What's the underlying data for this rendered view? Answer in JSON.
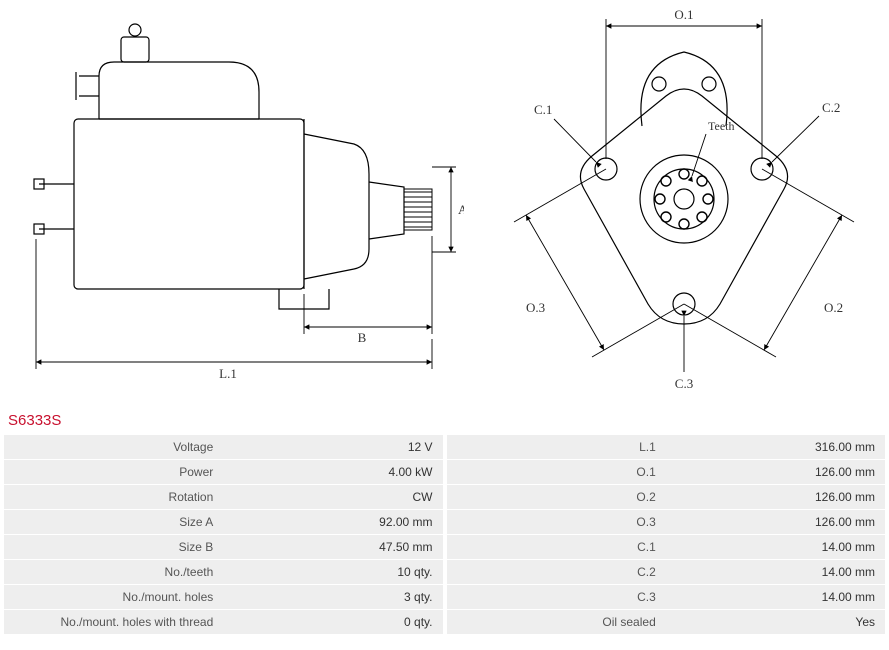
{
  "part_id": "S6333S",
  "diagram_labels": {
    "L1": "L.1",
    "A": "A",
    "B": "B",
    "O1": "O.1",
    "O2": "O.2",
    "O3": "O.3",
    "C1": "C.1",
    "C2": "C.2",
    "C3": "C.3",
    "Teeth": "Teeth"
  },
  "left_specs": [
    {
      "label": "Voltage",
      "value": "12 V"
    },
    {
      "label": "Power",
      "value": "4.00 kW"
    },
    {
      "label": "Rotation",
      "value": "CW"
    },
    {
      "label": "Size A",
      "value": "92.00 mm"
    },
    {
      "label": "Size B",
      "value": "47.50 mm"
    },
    {
      "label": "No./teeth",
      "value": "10 qty."
    },
    {
      "label": "No./mount. holes",
      "value": "3 qty."
    },
    {
      "label": "No./mount. holes with thread",
      "value": "0 qty."
    }
  ],
  "right_specs": [
    {
      "label": "L.1",
      "value": "316.00 mm"
    },
    {
      "label": "O.1",
      "value": "126.00 mm"
    },
    {
      "label": "O.2",
      "value": "126.00 mm"
    },
    {
      "label": "O.3",
      "value": "126.00 mm"
    },
    {
      "label": "C.1",
      "value": "14.00 mm"
    },
    {
      "label": "C.2",
      "value": "14.00 mm"
    },
    {
      "label": "C.3",
      "value": "14.00 mm"
    },
    {
      "label": "Oil sealed",
      "value": "Yes"
    }
  ],
  "style": {
    "stroke": "#000000",
    "stroke_width": 1.2,
    "dim_stroke": "#000000",
    "dim_stroke_width": 0.9,
    "label_font": "Verdana, sans-serif",
    "label_size": 13,
    "part_id_color": "#c8102e",
    "row_bg": "#eeeeee",
    "text_color": "#555555"
  }
}
